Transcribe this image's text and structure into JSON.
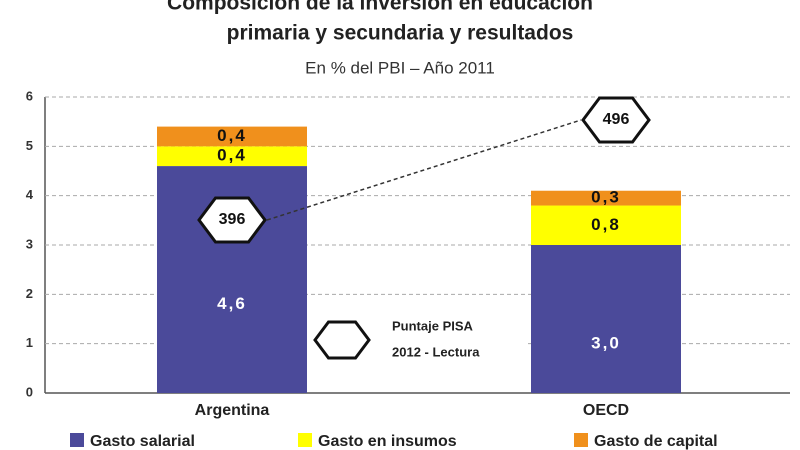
{
  "chart_data": {
    "type": "stacked_bar",
    "title": "Composición de la inversión en educación",
    "title_line2": "primaria y secundaria y resultados",
    "subtitle": "En % del PBI – Año 2011",
    "categories": [
      "Argentina",
      "OECD"
    ],
    "series": [
      {
        "name": "Gasto salarial",
        "color": "#4b4a9a",
        "values": [
          4.6,
          3.0
        ],
        "value_labels": [
          "4,6",
          "3,0"
        ],
        "label_color": "#ffffff"
      },
      {
        "name": "Gasto en insumos",
        "color": "#ffff00",
        "values": [
          0.4,
          0.8
        ],
        "value_labels": [
          "0,4",
          "0,8"
        ],
        "label_color": "#111111"
      },
      {
        "name": "Gasto de capital",
        "color": "#f0901c",
        "values": [
          0.4,
          0.3
        ],
        "value_labels": [
          "0,4",
          "0,3"
        ],
        "label_color": "#111111"
      }
    ],
    "pisa": {
      "label": [
        "Puntaje PISA",
        "2012 - Lectura"
      ],
      "values": [
        396,
        496
      ]
    },
    "ylim": [
      0,
      6
    ],
    "yticks": [
      0,
      1,
      2,
      3,
      4,
      5,
      6
    ],
    "grid": true
  }
}
